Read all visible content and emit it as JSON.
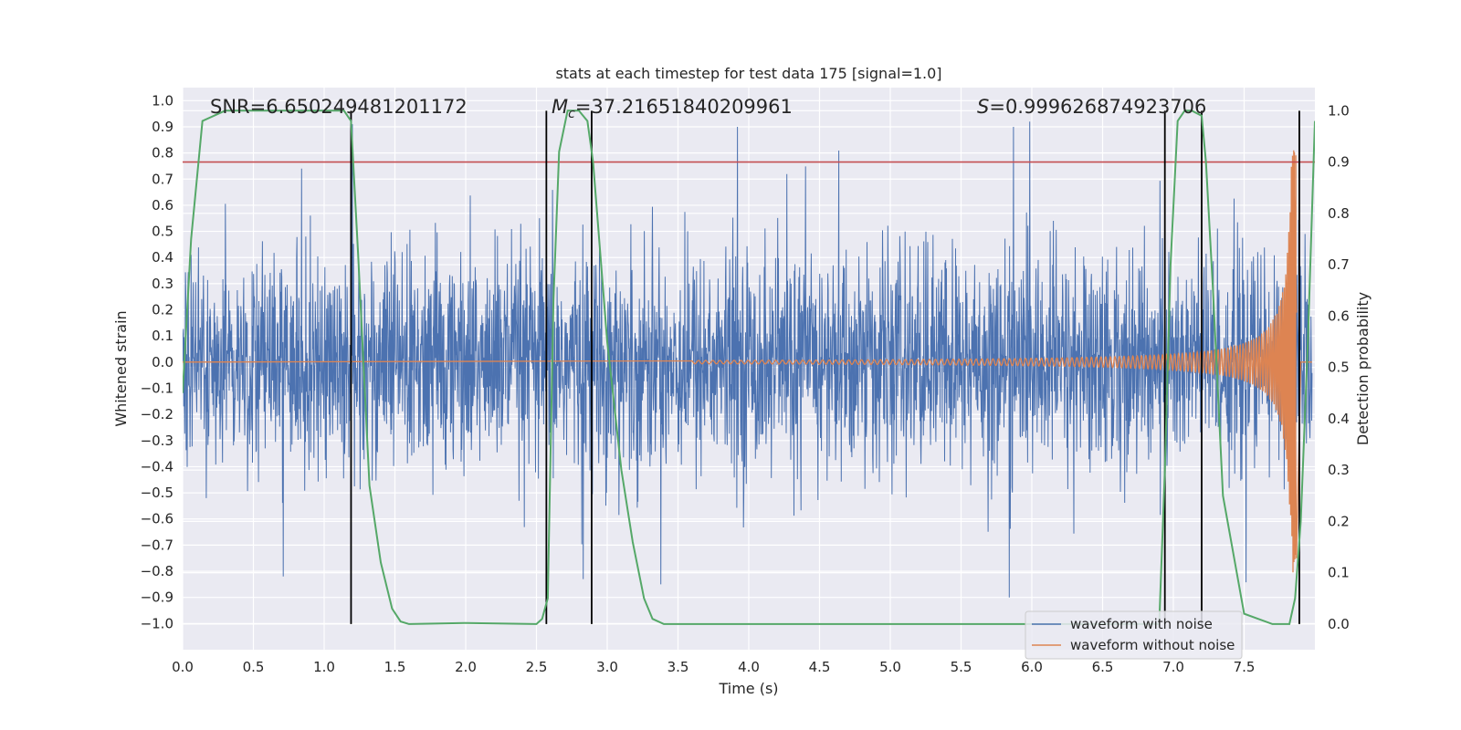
{
  "chart_data": {
    "type": "line",
    "title": "stats at each timestep for test data 175 [signal=1.0]",
    "xlabel": "Time (s)",
    "ylabel": "Whitened strain",
    "y2label": "Detection probability",
    "xlim": [
      0.0,
      8.0
    ],
    "ylim": [
      -1.1,
      1.05
    ],
    "y2lim": [
      -0.05,
      1.045
    ],
    "xticks": [
      "0.0",
      "0.5",
      "1.0",
      "1.5",
      "2.0",
      "2.5",
      "3.0",
      "3.5",
      "4.0",
      "4.5",
      "5.0",
      "5.5",
      "6.0",
      "6.5",
      "7.0",
      "7.5"
    ],
    "yticks": [
      "1.0",
      "0.9",
      "0.8",
      "0.7",
      "0.6",
      "0.5",
      "0.4",
      "0.3",
      "0.2",
      "0.1",
      "0.0",
      "−0.1",
      "−0.2",
      "−0.3",
      "−0.4",
      "−0.5",
      "−0.6",
      "−0.7",
      "−0.8",
      "−0.9",
      "−1.0"
    ],
    "y2ticks": [
      "1.0",
      "0.9",
      "0.8",
      "0.7",
      "0.6",
      "0.5",
      "0.4",
      "0.3",
      "0.2",
      "0.1",
      "0.0"
    ],
    "stats": {
      "snr": "SNR=6.650249481201172",
      "mc_symbol": "M",
      "mc_sub": "c",
      "mc_value": "=37.21651840209961",
      "s_symbol": "S",
      "s_value": "=0.999626874923706"
    },
    "threshold": 0.9,
    "vertical_lines": [
      1.19,
      2.57,
      2.89,
      6.94,
      7.2,
      7.89
    ],
    "series": [
      {
        "name": "waveform with noise",
        "color": "#4c72b0",
        "envelope": {
          "typical_abs": 0.35,
          "max": 0.92,
          "min": -0.85
        },
        "notable_peaks": [
          [
            0.84,
            0.74
          ],
          [
            1.2,
            0.91
          ],
          [
            3.92,
            0.9
          ],
          [
            5.87,
            0.9
          ],
          [
            0.71,
            -0.82
          ],
          [
            2.83,
            -0.83
          ],
          [
            5.84,
            -0.9
          ]
        ]
      },
      {
        "name": "waveform without noise",
        "color": "#dd8452",
        "description_points": [
          [
            4.0,
            0.0
          ],
          [
            7.0,
            0.03
          ],
          [
            7.6,
            0.2
          ],
          [
            7.8,
            0.4
          ],
          [
            7.85,
            0.81
          ],
          [
            7.87,
            -0.75
          ],
          [
            7.9,
            0.0
          ]
        ]
      },
      {
        "name": "detection probability",
        "color": "#55a868",
        "axis": "right",
        "x": [
          0.0,
          0.06,
          0.14,
          0.3,
          0.6,
          1.0,
          1.14,
          1.19,
          1.24,
          1.32,
          1.4,
          1.48,
          1.54,
          1.6,
          2.0,
          2.5,
          2.54,
          2.58,
          2.62,
          2.66,
          2.72,
          2.8,
          2.86,
          2.9,
          3.0,
          3.1,
          3.18,
          3.26,
          3.32,
          3.4,
          6.8,
          6.9,
          6.94,
          6.98,
          7.03,
          7.08,
          7.13,
          7.2,
          7.23,
          7.28,
          7.35,
          7.5,
          7.7,
          7.82,
          7.86,
          7.9,
          7.95,
          8.0
        ],
        "y": [
          0.45,
          0.75,
          0.98,
          1.0,
          1.0,
          1.0,
          1.0,
          0.98,
          0.72,
          0.27,
          0.12,
          0.03,
          0.005,
          0.0,
          0.002,
          0.0,
          0.01,
          0.05,
          0.63,
          0.92,
          1.0,
          1.0,
          0.98,
          0.9,
          0.55,
          0.3,
          0.16,
          0.05,
          0.01,
          0.0,
          0.0,
          0.0,
          0.3,
          0.7,
          0.98,
          1.0,
          1.0,
          0.99,
          0.9,
          0.65,
          0.25,
          0.02,
          0.0,
          0.0,
          0.05,
          0.2,
          0.55,
          0.98
        ]
      }
    ],
    "legend": {
      "position": "lower right",
      "entries": [
        {
          "label": "waveform with noise",
          "color": "#4c72b0"
        },
        {
          "label": "waveform without noise",
          "color": "#dd8452"
        }
      ]
    },
    "threshold_color": "#c44e52",
    "vline_color": "#000000"
  }
}
